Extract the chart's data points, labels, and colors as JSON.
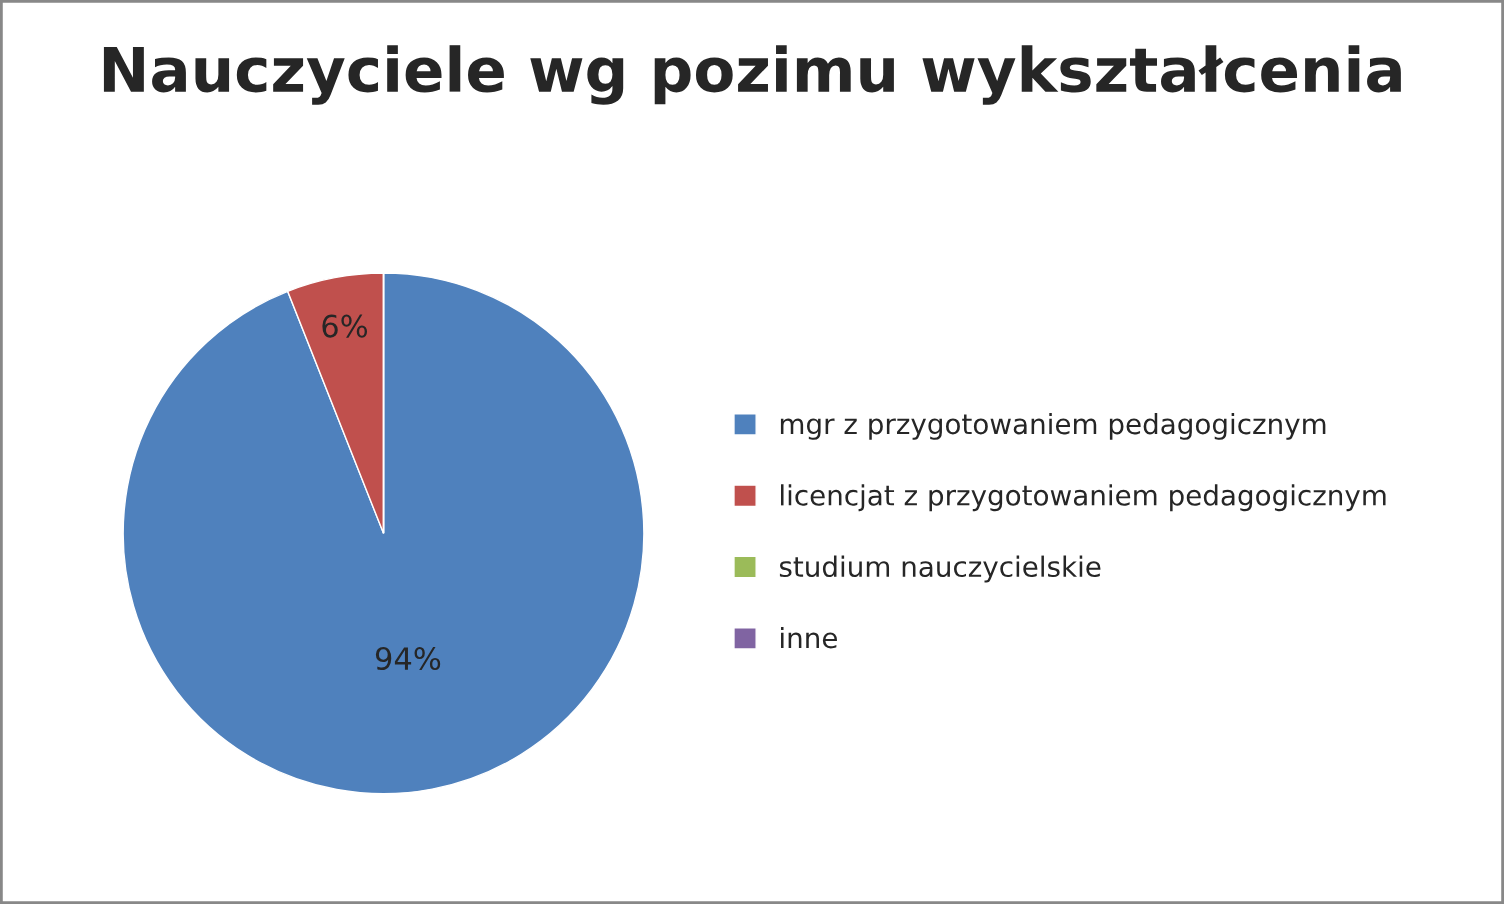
{
  "chart_data": {
    "type": "pie",
    "title": "Nauczyciele wg pozimu wykształcenia",
    "categories": [
      "mgr z przygotowaniem pedagogicznym",
      "licencjat z przygotowaniem pedagogicznym",
      "studium nauczycielskie",
      "inne"
    ],
    "values": [
      94,
      6,
      0,
      0
    ],
    "colors": [
      "#4f81bd",
      "#c0504d",
      "#9bbb59",
      "#8064a2"
    ],
    "value_labels": [
      "94%",
      "6%",
      null,
      null
    ],
    "legend": "right"
  }
}
